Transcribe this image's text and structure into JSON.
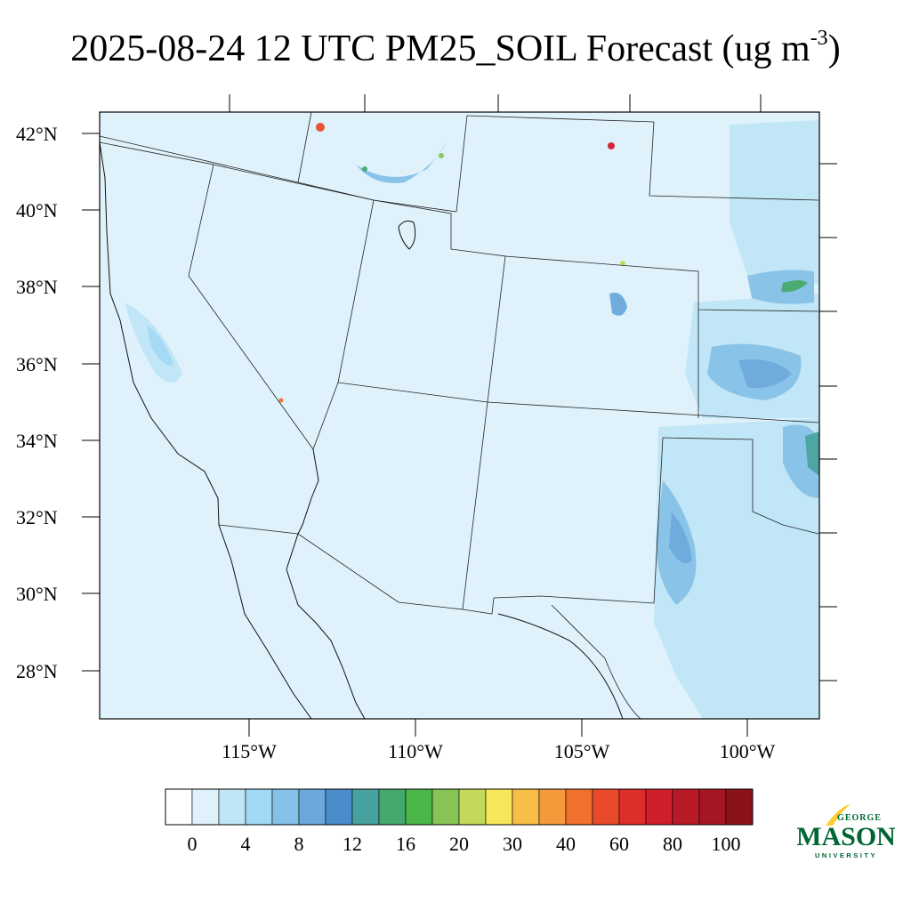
{
  "title": {
    "text": "2025-08-24 12 UTC PM25_SOIL Forecast (ug m",
    "superscript": "-3",
    "close": ")"
  },
  "map": {
    "lat_labels": [
      "42°N",
      "40°N",
      "38°N",
      "36°N",
      "34°N",
      "32°N",
      "30°N",
      "28°N"
    ],
    "lon_labels": [
      "115°W",
      "110°W",
      "105°W",
      "100°W"
    ],
    "background_fill": "#dff2fb"
  },
  "colorbar": {
    "colors": [
      "#ffffff",
      "#dff2fb",
      "#bfe6f7",
      "#a2d8f4",
      "#86c1e8",
      "#6aa8dc",
      "#4b8ccb",
      "#46a29e",
      "#45a86e",
      "#4bb648",
      "#86c555",
      "#c4d85a",
      "#f7e85b",
      "#f8be48",
      "#f59a3b",
      "#f2702e",
      "#e94a2b",
      "#de2e2a",
      "#d01e2b",
      "#b81a26",
      "#a51622",
      "#8c1219"
    ],
    "labels": [
      "0",
      "4",
      "8",
      "12",
      "16",
      "20",
      "30",
      "40",
      "60",
      "80",
      "100"
    ]
  },
  "logo": {
    "top_text": "GEORGE",
    "main_text": "MASON",
    "bottom_text": "UNIVERSITY",
    "green": "#006633",
    "gold": "#ffcc33"
  }
}
